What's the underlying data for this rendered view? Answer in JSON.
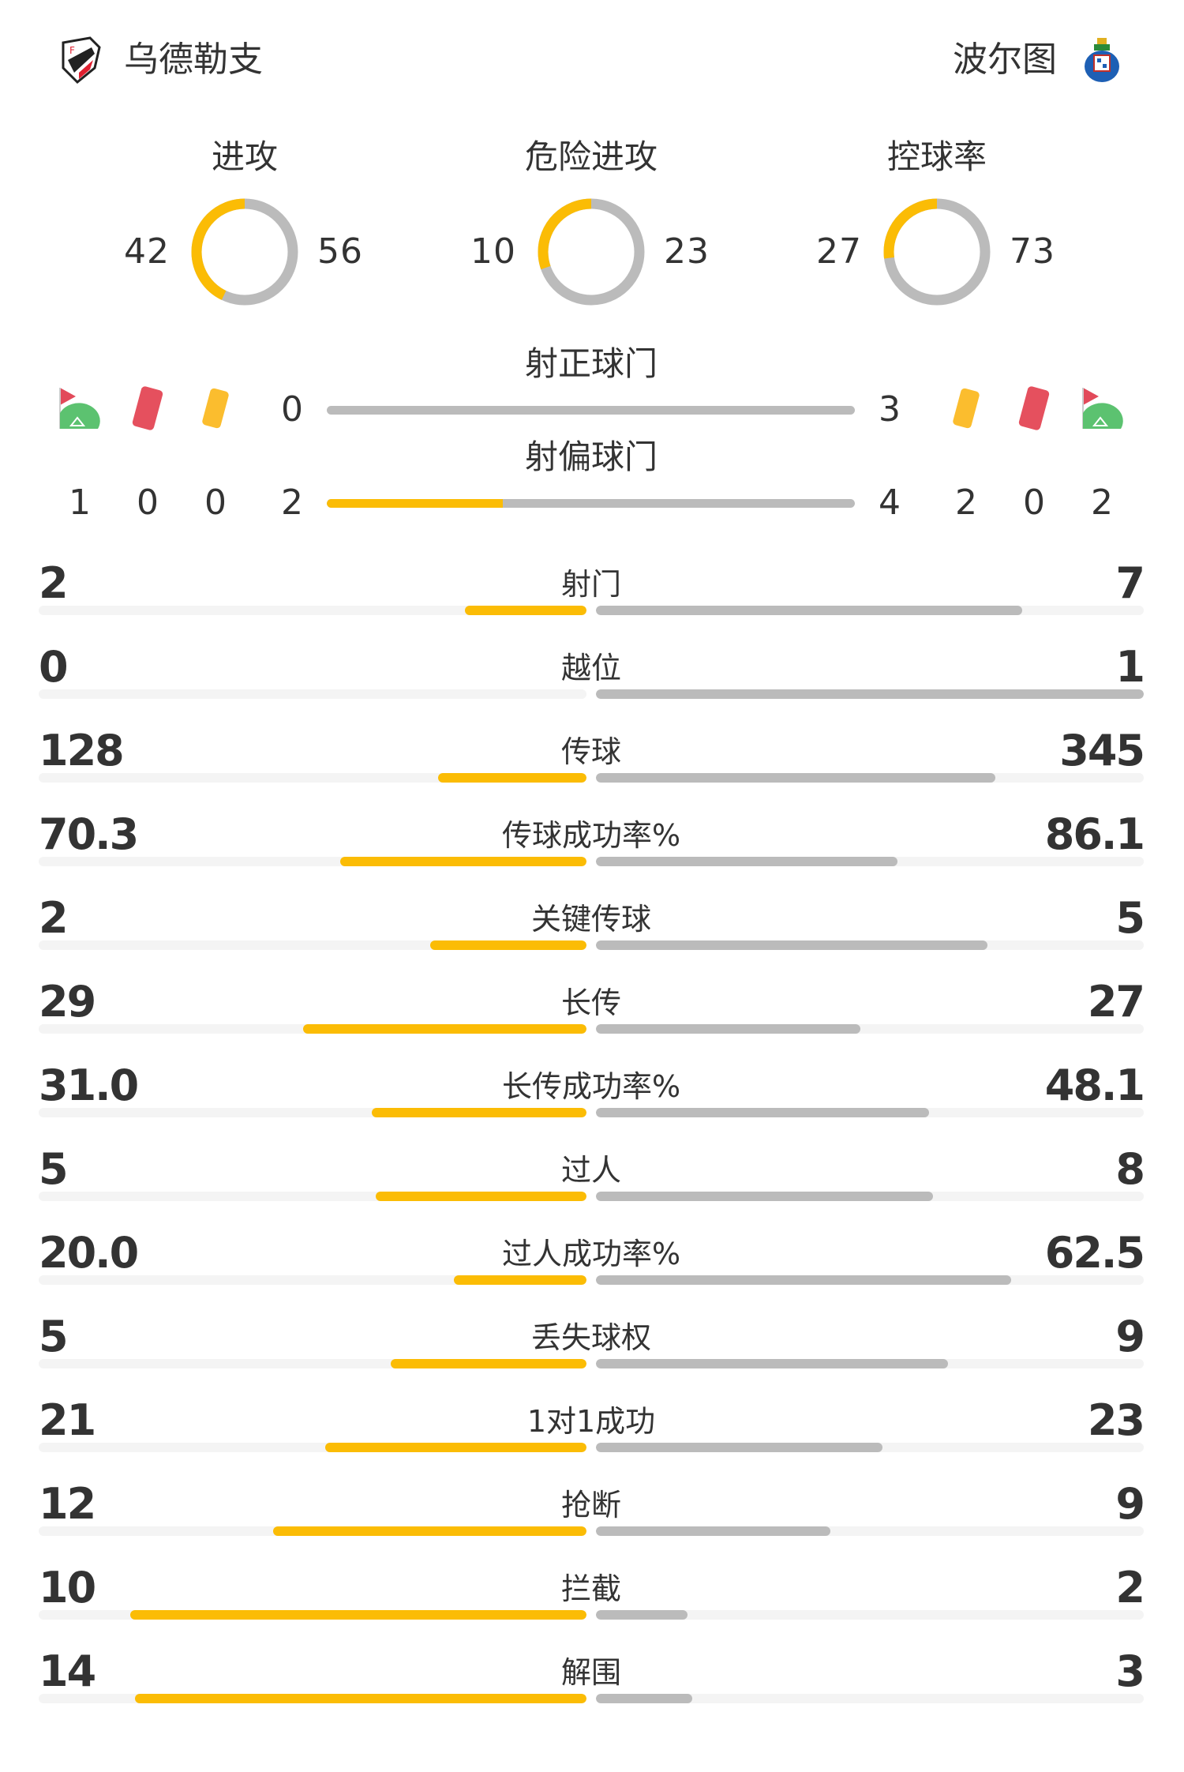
{
  "colors": {
    "home": "#fbbc05",
    "away": "#bbbbbb",
    "track": "#f4f4f4"
  },
  "header": {
    "home_team": "乌德勒支",
    "away_team": "波尔图",
    "home_logo_icon": "fc-utrecht-crest-icon",
    "away_logo_icon": "fc-porto-crest-icon"
  },
  "donuts": [
    {
      "label": "进攻",
      "home": "42",
      "away": "56"
    },
    {
      "label": "危险进攻",
      "home": "10",
      "away": "23"
    },
    {
      "label": "控球率",
      "home": "27",
      "away": "73"
    }
  ],
  "shots_on_target": {
    "label": "射正球门",
    "home": "0",
    "away": "3"
  },
  "shots_off_target": {
    "label": "射偏球门",
    "home": "2",
    "away": "4"
  },
  "events": {
    "home": {
      "corners": "1",
      "red_cards": "0",
      "yellow_cards": "0"
    },
    "away": {
      "corners": "2",
      "red_cards": "0",
      "yellow_cards": "2"
    }
  },
  "stats": [
    {
      "label": "射门",
      "home": "2",
      "away": "7"
    },
    {
      "label": "越位",
      "home": "0",
      "away": "1"
    },
    {
      "label": "传球",
      "home": "128",
      "away": "345"
    },
    {
      "label": "传球成功率%",
      "home": "70.3",
      "away": "86.1"
    },
    {
      "label": "关键传球",
      "home": "2",
      "away": "5"
    },
    {
      "label": "长传",
      "home": "29",
      "away": "27"
    },
    {
      "label": "长传成功率%",
      "home": "31.0",
      "away": "48.1"
    },
    {
      "label": "过人",
      "home": "5",
      "away": "8"
    },
    {
      "label": "过人成功率%",
      "home": "20.0",
      "away": "62.5"
    },
    {
      "label": "丢失球权",
      "home": "5",
      "away": "9"
    },
    {
      "label": "1对1成功",
      "home": "21",
      "away": "23"
    },
    {
      "label": "抢断",
      "home": "12",
      "away": "9"
    },
    {
      "label": "拦截",
      "home": "10",
      "away": "2"
    },
    {
      "label": "解围",
      "home": "14",
      "away": "3"
    }
  ]
}
